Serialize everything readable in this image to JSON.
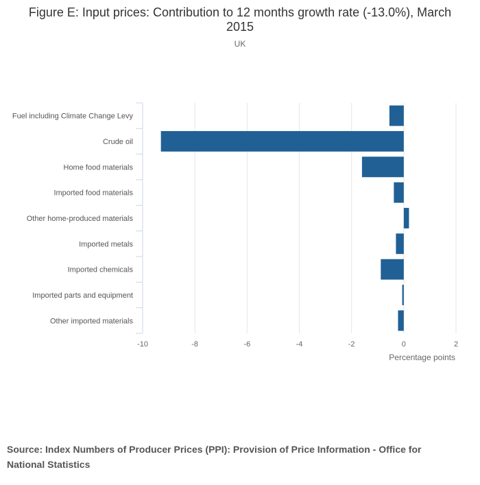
{
  "chart_data": {
    "type": "bar",
    "orientation": "horizontal",
    "title": "Figure E: Input prices: Contribution to 12 months growth rate (-13.0%), March 2015",
    "subtitle": "UK",
    "xlabel": "Percentage points",
    "ylabel": "",
    "xlim": [
      -10,
      2
    ],
    "xticks": [
      -10,
      -8,
      -6,
      -4,
      -2,
      0,
      2
    ],
    "grid": true,
    "legend": "none",
    "bar_color": "#206095",
    "categories": [
      "Fuel including Climate Change Levy",
      "Crude oil",
      "Home food materials",
      "Imported food materials",
      "Other home-produced materials",
      "Imported metals",
      "Imported chemicals",
      "Imported parts and equipment",
      "Other imported materials"
    ],
    "values": [
      -0.55,
      -9.3,
      -1.6,
      -0.38,
      0.2,
      -0.3,
      -0.88,
      -0.06,
      -0.22
    ]
  },
  "source": "Source: Index Numbers of Producer Prices (PPI): Provision of Price Information - Office for National Statistics"
}
